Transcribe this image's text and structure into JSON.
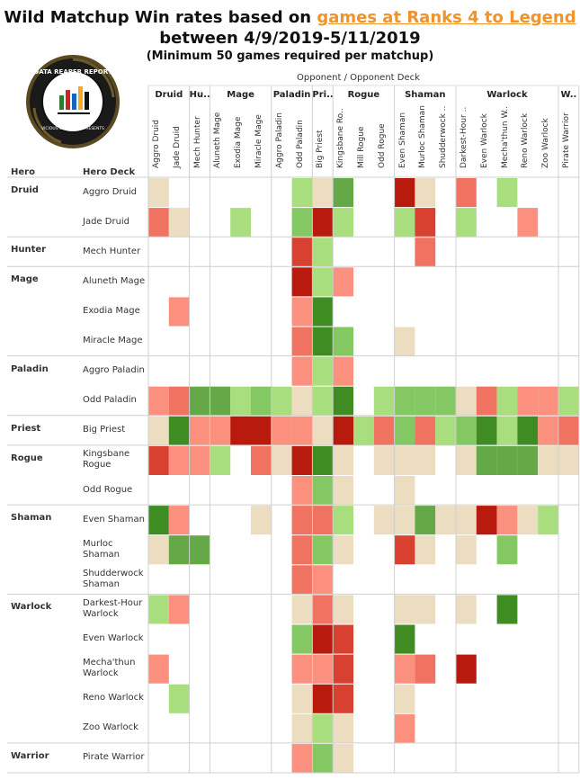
{
  "header": {
    "title_prefix": "Wild Matchup Win rates based on ",
    "title_link": "games at Ranks 4 to Legend",
    "title_line2": "between 4/9/2019-5/11/2019",
    "subtitle": "(Minimum 50 games required per matchup)"
  },
  "logo": {
    "text_top": "DATA REAPER REPORT",
    "text_bottom": "VICIOUS SYNDICATE PRESENTS"
  },
  "axis": {
    "opponent": "Opponent  /  Opponent Deck",
    "hero": "Hero",
    "hero_deck": "Hero Deck"
  },
  "colors": {
    "strong_loss": "#b81a0e",
    "loss": "#d84030",
    "mild_loss": "#f07260",
    "slight_loss": "#fb907f",
    "even": "#ecdcc0",
    "slight_win": "#a9de7e",
    "mild_win": "#84c864",
    "win": "#64a848",
    "strong_win": "#3e8c22"
  },
  "chart_data": {
    "type": "heatmap",
    "title": "Wild Matchup Win rates based on games at Ranks 4 to Legend between 4/9/2019-5/11/2019",
    "subtitle": "(Minimum 50 games required per matchup)",
    "opponent_groups": [
      {
        "label": "Druid",
        "span": 2
      },
      {
        "label": "Hu..",
        "span": 1
      },
      {
        "label": "Mage",
        "span": 3
      },
      {
        "label": "Paladin",
        "span": 2
      },
      {
        "label": "Pri..",
        "span": 1
      },
      {
        "label": "Rogue",
        "span": 3
      },
      {
        "label": "Shaman",
        "span": 3
      },
      {
        "label": "Warlock",
        "span": 5
      },
      {
        "label": "W..",
        "span": 1
      }
    ],
    "columns": [
      "Aggro Druid",
      "Jade Druid",
      "Mech Hunter",
      "Aluneth Mage",
      "Exodia Mage",
      "Miracle Mage",
      "Aggro Paladin",
      "Odd Paladin",
      "Big Priest",
      "Kingsbane Ro..",
      "Mill Rogue",
      "Odd Rogue",
      "Even Shaman",
      "Murloc Shaman",
      "Shudderwock ..",
      "Darkest-Hour ..",
      "Even Warlock",
      "Mecha'thun W..",
      "Reno Warlock",
      "Zoo Warlock",
      "Pirate Warrior"
    ],
    "rows": [
      {
        "hero": "Druid",
        "deck": "Aggro Druid",
        "cells": [
          "N",
          null,
          null,
          null,
          null,
          null,
          null,
          "W1",
          "N",
          "W3",
          null,
          null,
          "L4",
          "N",
          null,
          "L2",
          null,
          "W1",
          null,
          null,
          null
        ]
      },
      {
        "hero": "",
        "deck": "Jade Druid",
        "cells": [
          "L2",
          "N",
          null,
          null,
          "W1",
          null,
          null,
          "W2",
          "L4",
          "W1",
          null,
          null,
          "W1",
          "L3",
          null,
          "W1",
          null,
          null,
          "L1",
          null,
          null
        ]
      },
      {
        "hero": "Hunter",
        "deck": "Mech Hunter",
        "cells": [
          null,
          null,
          null,
          null,
          null,
          null,
          null,
          "L3",
          "W1",
          null,
          null,
          null,
          null,
          "L2",
          null,
          null,
          null,
          null,
          null,
          null,
          null
        ]
      },
      {
        "hero": "Mage",
        "deck": "Aluneth Mage",
        "cells": [
          null,
          null,
          null,
          null,
          null,
          null,
          null,
          "L4",
          "W1",
          "L1",
          null,
          null,
          null,
          null,
          null,
          null,
          null,
          null,
          null,
          null,
          null
        ]
      },
      {
        "hero": "",
        "deck": "Exodia Mage",
        "cells": [
          null,
          "L1",
          null,
          null,
          null,
          null,
          null,
          "L1",
          "W4",
          null,
          null,
          null,
          null,
          null,
          null,
          null,
          null,
          null,
          null,
          null,
          null
        ]
      },
      {
        "hero": "",
        "deck": "Miracle Mage",
        "cells": [
          null,
          null,
          null,
          null,
          null,
          null,
          null,
          "L2",
          "W4",
          "W2",
          null,
          null,
          "N",
          null,
          null,
          null,
          null,
          null,
          null,
          null,
          null
        ]
      },
      {
        "hero": "Paladin",
        "deck": "Aggro Paladin",
        "cells": [
          null,
          null,
          null,
          null,
          null,
          null,
          null,
          "L1",
          "W1",
          "L1",
          null,
          null,
          null,
          null,
          null,
          null,
          null,
          null,
          null,
          null,
          null
        ]
      },
      {
        "hero": "",
        "deck": "Odd Paladin",
        "cells": [
          "L1",
          "L2",
          "W3",
          "W3",
          "W1",
          "W2",
          "W1",
          "N",
          "W1",
          "W4",
          null,
          "W1",
          "W2",
          "W2",
          "W2",
          "N",
          "L2",
          "W1",
          "L1",
          "L1",
          "W1"
        ]
      },
      {
        "hero": "Priest",
        "deck": "Big Priest",
        "cells": [
          "N",
          "W4",
          "L1",
          "L1",
          "L4",
          "L4",
          "L1",
          "L1",
          "N",
          "L4",
          "W1",
          "L2",
          "W2",
          "L2",
          "W1",
          "W2",
          "W4",
          "W1",
          "W4",
          "L1",
          "L2"
        ]
      },
      {
        "hero": "Rogue",
        "deck": "Kingsbane Rogue",
        "cells": [
          "L3",
          "L1",
          "L1",
          "W1",
          null,
          "L2",
          "N",
          "L4",
          "W4",
          "N",
          null,
          "N",
          "N",
          "N",
          null,
          "N",
          "W3",
          "W3",
          "W3",
          "N",
          "N"
        ]
      },
      {
        "hero": "",
        "deck": "Odd Rogue",
        "cells": [
          null,
          null,
          null,
          null,
          null,
          null,
          null,
          "L1",
          "W2",
          "N",
          null,
          null,
          "N",
          null,
          null,
          null,
          null,
          null,
          null,
          null,
          null
        ]
      },
      {
        "hero": "Shaman",
        "deck": "Even Shaman",
        "cells": [
          "W4",
          "L1",
          null,
          null,
          null,
          "N",
          null,
          "L2",
          "L2",
          "W1",
          null,
          "N",
          "N",
          "W3",
          "N",
          "N",
          "L4",
          "L1",
          "N",
          "W1",
          null
        ]
      },
      {
        "hero": "",
        "deck": "Murloc Shaman",
        "cells": [
          "N",
          "W3",
          "W3",
          null,
          null,
          null,
          null,
          "L2",
          "W2",
          "N",
          null,
          null,
          "L3",
          "N",
          null,
          "N",
          null,
          "W2",
          null,
          null,
          null
        ]
      },
      {
        "hero": "",
        "deck": "Shudderwock Shaman",
        "cells": [
          null,
          null,
          null,
          null,
          null,
          null,
          null,
          "L2",
          "L1",
          null,
          null,
          null,
          null,
          null,
          null,
          null,
          null,
          null,
          null,
          null,
          null
        ]
      },
      {
        "hero": "Warlock",
        "deck": "Darkest-Hour Warlock",
        "cells": [
          "W1",
          "L1",
          null,
          null,
          null,
          null,
          null,
          "N",
          "L2",
          "N",
          null,
          null,
          "N",
          "N",
          null,
          "N",
          null,
          "W4",
          null,
          null,
          null
        ]
      },
      {
        "hero": "",
        "deck": "Even Warlock",
        "cells": [
          null,
          null,
          null,
          null,
          null,
          null,
          null,
          "W2",
          "L4",
          "L3",
          null,
          null,
          "W4",
          null,
          null,
          null,
          null,
          null,
          null,
          null,
          null
        ]
      },
      {
        "hero": "",
        "deck": "Mecha'thun Warlock",
        "cells": [
          "L1",
          null,
          null,
          null,
          null,
          null,
          null,
          "L1",
          "L1",
          "L3",
          null,
          null,
          "L1",
          "L2",
          null,
          "L4",
          null,
          null,
          null,
          null,
          null
        ]
      },
      {
        "hero": "",
        "deck": "Reno Warlock",
        "cells": [
          null,
          "W1",
          null,
          null,
          null,
          null,
          null,
          "N",
          "L4",
          "L3",
          null,
          null,
          "N",
          null,
          null,
          null,
          null,
          null,
          null,
          null,
          null
        ]
      },
      {
        "hero": "",
        "deck": "Zoo Warlock",
        "cells": [
          null,
          null,
          null,
          null,
          null,
          null,
          null,
          "N",
          "W1",
          "N",
          null,
          null,
          "L1",
          null,
          null,
          null,
          null,
          null,
          null,
          null,
          null
        ]
      },
      {
        "hero": "Warrior",
        "deck": "Pirate Warrior",
        "cells": [
          null,
          null,
          null,
          null,
          null,
          null,
          null,
          "L1",
          "W2",
          "N",
          null,
          null,
          null,
          null,
          null,
          null,
          null,
          null,
          null,
          null,
          null
        ]
      }
    ]
  }
}
